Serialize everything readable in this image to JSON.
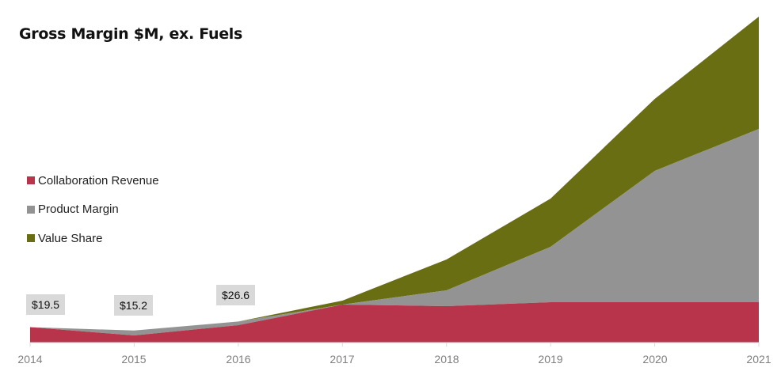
{
  "chart_data": {
    "type": "area",
    "stacked": true,
    "title": "Gross Margin $M, ex. Fuels",
    "xlabel": "",
    "ylabel": "",
    "x": [
      "2014",
      "2015",
      "2016",
      "2017",
      "2018",
      "2019",
      "2020",
      "2021"
    ],
    "series": [
      {
        "name": "Collaboration Revenue",
        "color": "#b7344a",
        "values": [
          19.5,
          9.0,
          22.0,
          48.0,
          46.0,
          51.0,
          51.0,
          51.0
        ]
      },
      {
        "name": "Product Margin",
        "color": "#939393",
        "values": [
          0.0,
          6.2,
          4.6,
          0.0,
          20.0,
          70.0,
          166.0,
          219.0
        ]
      },
      {
        "name": "Value Share",
        "color": "#6a6e12",
        "values": [
          0.0,
          0.0,
          0.0,
          5.0,
          39.0,
          61.0,
          91.0,
          142.0
        ]
      }
    ],
    "callouts": [
      {
        "x": "2014",
        "label": "$19.5"
      },
      {
        "x": "2015",
        "label": "$15.2"
      },
      {
        "x": "2016",
        "label": "$26.6"
      }
    ],
    "ylim": [
      0,
      412
    ],
    "grid": false,
    "legend_position": "left-middle"
  }
}
